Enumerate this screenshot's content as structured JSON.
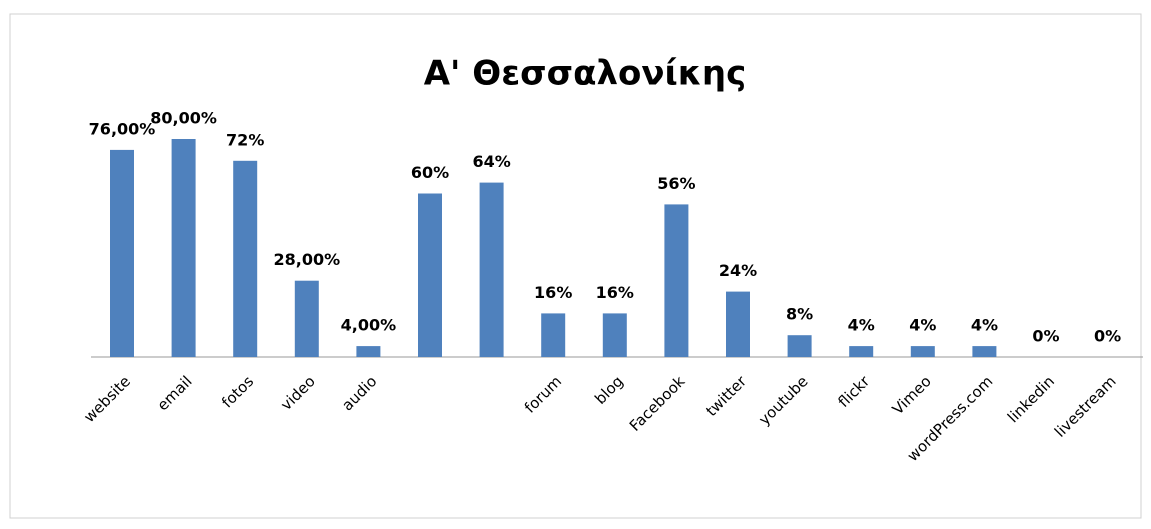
{
  "chart_data": {
    "type": "bar",
    "title": "Α' Θεσσαλονίκης",
    "categories": [
      "website",
      "email",
      "fotos",
      "video",
      "audio",
      null,
      null,
      "forum",
      "blog",
      "Facebook",
      "twitter",
      "youtube",
      "flickr",
      "Vimeo",
      "wordPress.com",
      "linkedin",
      "livestream"
    ],
    "values": [
      76,
      80,
      72,
      28,
      4,
      60,
      64,
      16,
      16,
      56,
      24,
      8,
      4,
      4,
      4,
      0,
      0
    ],
    "value_labels": [
      "76,00%",
      "80,00%",
      "72%",
      "28,00%",
      "4,00%",
      "60%",
      "64%",
      "16%",
      "16%",
      "56%",
      "24%",
      "8%",
      "4%",
      "4%",
      "4%",
      "0%",
      "0%"
    ],
    "color": "#4f81bd"
  }
}
